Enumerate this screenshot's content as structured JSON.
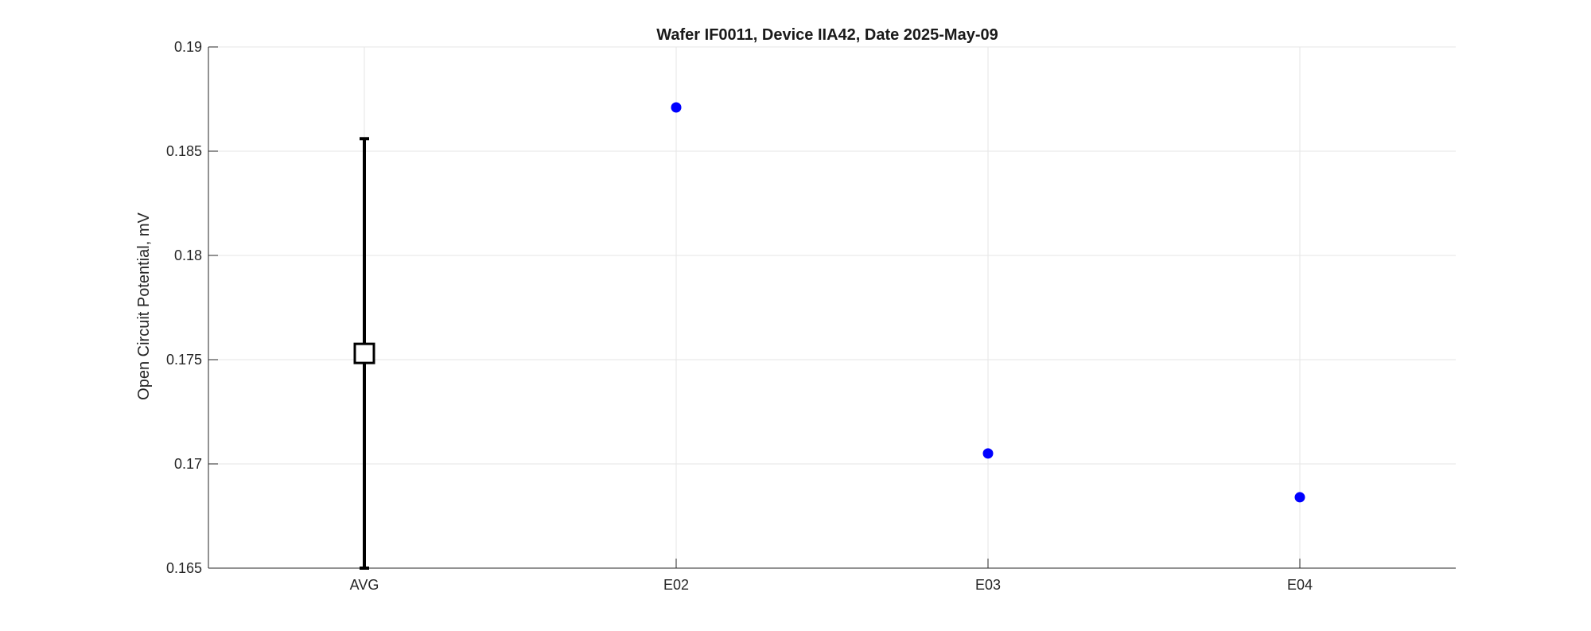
{
  "chart_data": {
    "type": "scatter",
    "title": "Wafer IF0011, Device IIA42, Date 2025-May-09",
    "xlabel": "",
    "ylabel": "Open Circuit Potential, mV",
    "categories": [
      "AVG",
      "E02",
      "E03",
      "E04"
    ],
    "ylim": [
      0.165,
      0.19
    ],
    "yticks": [
      0.165,
      0.17,
      0.175,
      0.18,
      0.185,
      0.19
    ],
    "ytick_labels": [
      "0.165",
      "0.17",
      "0.175",
      "0.18",
      "0.185",
      "0.19"
    ],
    "grid": true,
    "average": {
      "category": "AVG",
      "value": 0.1753,
      "error_low": 0.165,
      "error_high": 0.1856,
      "marker": "square",
      "color": "#000000"
    },
    "series": [
      {
        "categories": [
          "E02",
          "E03",
          "E04"
        ],
        "values": [
          0.1871,
          0.1705,
          0.1684
        ],
        "marker": "circle",
        "color": "#0000ff"
      }
    ]
  }
}
